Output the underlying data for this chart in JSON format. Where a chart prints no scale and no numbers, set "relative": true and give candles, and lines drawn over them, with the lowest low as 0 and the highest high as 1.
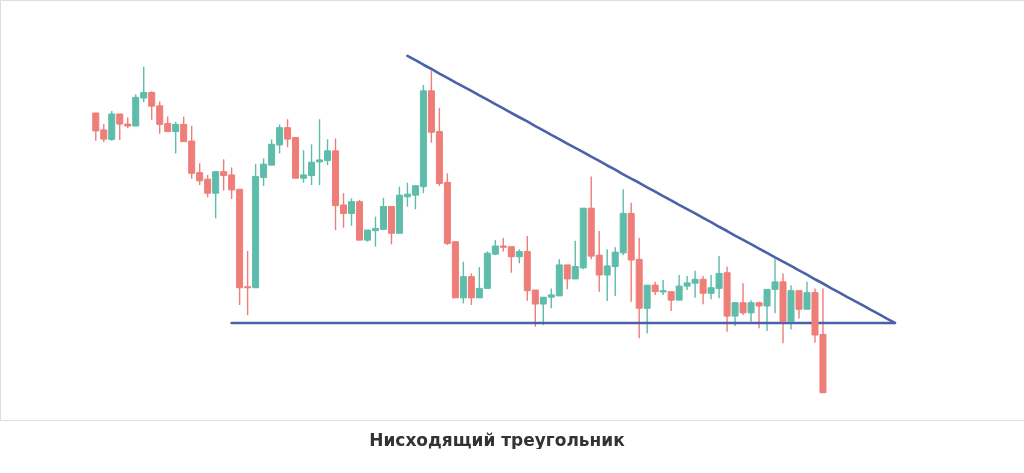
{
  "chart_data": {
    "type": "candlestick",
    "title": "Нисходящий треугольник",
    "relative": true,
    "categories": [
      null,
      null,
      null,
      null,
      null,
      null,
      null,
      null,
      null,
      null,
      null,
      null,
      null,
      null,
      null,
      null,
      null,
      null,
      null,
      null,
      null,
      null,
      null,
      null,
      null,
      null,
      null,
      null,
      null,
      null,
      null,
      null,
      null,
      null,
      null,
      null,
      null,
      null,
      null,
      null,
      null,
      null,
      null,
      null,
      null,
      null,
      null,
      null,
      null,
      null,
      null,
      null,
      null,
      null,
      null,
      null,
      null,
      null,
      null,
      null,
      null,
      null,
      null,
      null,
      null,
      null,
      null,
      null,
      null,
      null,
      null,
      null,
      null,
      null,
      null,
      null,
      null,
      null,
      null,
      null,
      null,
      null,
      null,
      null,
      null,
      null,
      null,
      null,
      null,
      null,
      null,
      null,
      null,
      null,
      null,
      null,
      null,
      null,
      null,
      null,
      null
    ],
    "ohlc": [
      [
        0.858,
        0.858,
        0.773,
        0.803
      ],
      [
        0.806,
        0.824,
        0.769,
        0.778
      ],
      [
        0.777,
        0.864,
        0.773,
        0.855
      ],
      [
        0.855,
        0.855,
        0.775,
        0.824
      ],
      [
        0.824,
        0.844,
        0.811,
        0.818
      ],
      [
        0.818,
        0.915,
        0.818,
        0.906
      ],
      [
        0.904,
        1.0,
        0.891,
        0.921
      ],
      [
        0.921,
        0.925,
        0.837,
        0.879
      ],
      [
        0.88,
        0.893,
        0.794,
        0.823
      ],
      [
        0.826,
        0.847,
        0.801,
        0.801
      ],
      [
        0.801,
        0.831,
        0.734,
        0.823
      ],
      [
        0.823,
        0.847,
        0.77,
        0.77
      ],
      [
        0.772,
        0.819,
        0.656,
        0.673
      ],
      [
        0.675,
        0.704,
        0.637,
        0.65
      ],
      [
        0.655,
        0.668,
        0.599,
        0.612
      ],
      [
        0.612,
        0.678,
        0.535,
        0.678
      ],
      [
        0.678,
        0.716,
        0.62,
        0.666
      ],
      [
        0.668,
        0.691,
        0.594,
        0.622
      ],
      [
        0.624,
        0.624,
        0.269,
        0.322
      ],
      [
        0.325,
        0.435,
        0.238,
        0.322
      ],
      [
        0.322,
        0.702,
        0.322,
        0.663
      ],
      [
        0.66,
        0.719,
        0.634,
        0.701
      ],
      [
        0.698,
        0.777,
        0.698,
        0.762
      ],
      [
        0.76,
        0.823,
        0.734,
        0.813
      ],
      [
        0.813,
        0.839,
        0.753,
        0.778
      ],
      [
        0.783,
        0.783,
        0.658,
        0.658
      ],
      [
        0.658,
        0.744,
        0.644,
        0.668
      ],
      [
        0.666,
        0.762,
        0.637,
        0.707
      ],
      [
        0.708,
        0.839,
        0.637,
        0.714
      ],
      [
        0.712,
        0.777,
        0.698,
        0.742
      ],
      [
        0.742,
        0.78,
        0.499,
        0.574
      ],
      [
        0.576,
        0.612,
        0.506,
        0.55
      ],
      [
        0.55,
        0.596,
        0.512,
        0.586
      ],
      [
        0.586,
        0.591,
        0.468,
        0.468
      ],
      [
        0.468,
        0.499,
        0.463,
        0.499
      ],
      [
        0.497,
        0.54,
        0.448,
        0.504
      ],
      [
        0.501,
        0.598,
        0.501,
        0.571
      ],
      [
        0.571,
        0.571,
        0.455,
        0.489
      ],
      [
        0.489,
        0.632,
        0.489,
        0.606
      ],
      [
        0.601,
        0.644,
        0.571,
        0.609
      ],
      [
        0.606,
        0.635,
        0.563,
        0.635
      ],
      [
        0.632,
        0.944,
        0.612,
        0.926
      ],
      [
        0.926,
        0.988,
        0.767,
        0.799
      ],
      [
        0.801,
        0.874,
        0.634,
        0.642
      ],
      [
        0.645,
        0.673,
        0.453,
        0.458
      ],
      [
        0.463,
        0.463,
        0.291,
        0.291
      ],
      [
        0.291,
        0.402,
        0.274,
        0.356
      ],
      [
        0.356,
        0.366,
        0.269,
        0.291
      ],
      [
        0.291,
        0.385,
        0.291,
        0.32
      ],
      [
        0.32,
        0.433,
        0.32,
        0.428
      ],
      [
        0.425,
        0.468,
        0.422,
        0.45
      ],
      [
        0.45,
        0.475,
        0.433,
        0.446
      ],
      [
        0.448,
        0.448,
        0.368,
        0.417
      ],
      [
        0.417,
        0.44,
        0.397,
        0.433
      ],
      [
        0.433,
        0.481,
        0.282,
        0.313
      ],
      [
        0.315,
        0.315,
        0.202,
        0.272
      ],
      [
        0.272,
        0.293,
        0.208,
        0.293
      ],
      [
        0.293,
        0.32,
        0.259,
        0.3
      ],
      [
        0.297,
        0.409,
        0.297,
        0.392
      ],
      [
        0.392,
        0.392,
        0.317,
        0.349
      ],
      [
        0.349,
        0.466,
        0.349,
        0.387
      ],
      [
        0.383,
        0.566,
        0.379,
        0.566
      ],
      [
        0.566,
        0.663,
        0.409,
        0.419
      ],
      [
        0.422,
        0.496,
        0.31,
        0.361
      ],
      [
        0.361,
        0.44,
        0.281,
        0.389
      ],
      [
        0.387,
        0.446,
        0.297,
        0.431
      ],
      [
        0.429,
        0.624,
        0.422,
        0.55
      ],
      [
        0.55,
        0.583,
        0.279,
        0.407
      ],
      [
        0.409,
        0.475,
        0.167,
        0.259
      ],
      [
        0.259,
        0.33,
        0.182,
        0.33
      ],
      [
        0.33,
        0.34,
        0.3,
        0.31
      ],
      [
        0.309,
        0.346,
        0.3,
        0.313
      ],
      [
        0.31,
        0.31,
        0.251,
        0.284
      ],
      [
        0.284,
        0.361,
        0.284,
        0.327
      ],
      [
        0.327,
        0.358,
        0.315,
        0.337
      ],
      [
        0.336,
        0.374,
        0.291,
        0.348
      ],
      [
        0.348,
        0.358,
        0.271,
        0.305
      ],
      [
        0.305,
        0.361,
        0.287,
        0.322
      ],
      [
        0.32,
        0.419,
        0.29,
        0.366
      ],
      [
        0.368,
        0.387,
        0.187,
        0.235
      ],
      [
        0.235,
        0.276,
        0.205,
        0.276
      ],
      [
        0.276,
        0.336,
        0.238,
        0.245
      ],
      [
        0.245,
        0.284,
        0.218,
        0.276
      ],
      [
        0.276,
        0.279,
        0.198,
        0.266
      ],
      [
        0.266,
        0.317,
        0.189,
        0.317
      ],
      [
        0.317,
        0.409,
        0.244,
        0.34
      ],
      [
        0.34,
        0.366,
        0.152,
        0.218
      ],
      [
        0.218,
        0.33,
        0.194,
        0.313
      ],
      [
        0.313,
        0.313,
        0.228,
        0.256
      ],
      [
        0.256,
        0.34,
        0.256,
        0.307
      ],
      [
        0.307,
        0.32,
        0.153,
        0.177
      ],
      [
        0.179,
        0.32,
        0.0,
        0.0
      ],
      null,
      null,
      null,
      null,
      null,
      null,
      null,
      null,
      null
    ],
    "colors": [
      "#ef7d78",
      "#ef7d78",
      "#5ebcaa",
      "#ef7d78",
      "#ef7d78",
      "#5ebcaa",
      "#5ebcaa",
      "#ef7d78",
      "#ef7d78",
      "#ef7d78",
      "#5ebcaa",
      "#ef7d78",
      "#ef7d78",
      "#ef7d78",
      "#ef7d78",
      "#5ebcaa",
      "#ef7d78",
      "#ef7d78",
      "#ef7d78",
      "#ef7d78",
      "#5ebcaa",
      "#5ebcaa",
      "#5ebcaa",
      "#5ebcaa",
      "#ef7d78",
      "#ef7d78",
      "#5ebcaa",
      "#5ebcaa",
      "#5ebcaa",
      "#5ebcaa",
      "#ef7d78",
      "#ef7d78",
      "#5ebcaa",
      "#ef7d78",
      "#5ebcaa",
      "#5ebcaa",
      "#5ebcaa",
      "#ef7d78",
      "#5ebcaa",
      "#5ebcaa",
      "#5ebcaa",
      "#5ebcaa",
      "#ef7d78",
      "#ef7d78",
      "#ef7d78",
      "#ef7d78",
      "#5ebcaa",
      "#ef7d78",
      "#5ebcaa",
      "#5ebcaa",
      "#5ebcaa",
      "#ef7d78",
      "#ef7d78",
      "#5ebcaa",
      "#ef7d78",
      "#ef7d78",
      "#5ebcaa",
      "#5ebcaa",
      "#5ebcaa",
      "#ef7d78",
      "#5ebcaa",
      "#5ebcaa",
      "#ef7d78",
      "#ef7d78",
      "#5ebcaa",
      "#5ebcaa",
      "#5ebcaa",
      "#ef7d78",
      "#ef7d78",
      "#5ebcaa",
      "#ef7d78",
      "#5ebcaa",
      "#ef7d78",
      "#5ebcaa",
      "#5ebcaa",
      "#5ebcaa",
      "#ef7d78",
      "#5ebcaa",
      "#5ebcaa",
      "#ef7d78",
      "#5ebcaa",
      "#ef7d78",
      "#5ebcaa",
      "#ef7d78",
      "#5ebcaa",
      "#5ebcaa",
      "#ef7d78",
      "#5ebcaa",
      "#ef7d78",
      "#5ebcaa",
      "#ef7d78",
      "#ef7d78",
      null,
      null,
      null,
      null,
      null,
      null,
      null,
      null,
      null
    ],
    "series": [
      {
        "type": "line",
        "color": "#4a62a9",
        "values": [
          null,
          null,
          null,
          null,
          null,
          null,
          null,
          null,
          null,
          null,
          null,
          null,
          null,
          null,
          null,
          null,
          null,
          0.214,
          0.214,
          0.214,
          0.214,
          0.214,
          0.214,
          0.214,
          0.214,
          0.214,
          0.214,
          0.214,
          0.214,
          0.214,
          0.214,
          0.214,
          0.214,
          0.214,
          0.214,
          0.214,
          0.214,
          0.214,
          0.214,
          0.214,
          0.214,
          0.214,
          0.214,
          0.214,
          0.214,
          0.214,
          0.214,
          0.214,
          0.214,
          0.214,
          0.214,
          0.214,
          0.214,
          0.214,
          0.214,
          0.214,
          0.214,
          0.214,
          0.214,
          0.214,
          0.214,
          0.214,
          0.214,
          0.214,
          0.214,
          0.214,
          0.214,
          0.214,
          0.214,
          0.214,
          0.214,
          0.214,
          0.214,
          0.214,
          0.214,
          0.214,
          0.214,
          0.214,
          0.214,
          0.214,
          0.214,
          0.214,
          0.214,
          0.214,
          0.214,
          0.214,
          0.214,
          0.214,
          0.214,
          0.214,
          0.214,
          0.214,
          0.214,
          0.214,
          0.214,
          0.214,
          0.214,
          0.214,
          0.214,
          0.214,
          0.214
        ]
      },
      {
        "type": "line",
        "color": "#4a62a9",
        "values": [
          null,
          null,
          null,
          null,
          null,
          null,
          null,
          null,
          null,
          null,
          null,
          null,
          null,
          null,
          null,
          null,
          null,
          null,
          null,
          null,
          null,
          null,
          null,
          null,
          null,
          null,
          null,
          null,
          null,
          null,
          null,
          null,
          null,
          null,
          null,
          null,
          null,
          null,
          null,
          1.033,
          1.02,
          1.006,
          0.993,
          0.979,
          0.966,
          0.952,
          0.939,
          0.926,
          0.912,
          0.899,
          0.885,
          0.872,
          0.858,
          0.845,
          0.832,
          0.818,
          0.805,
          0.791,
          0.778,
          0.764,
          0.751,
          0.738,
          0.724,
          0.711,
          0.697,
          0.684,
          0.67,
          0.657,
          0.644,
          0.63,
          0.617,
          0.603,
          0.59,
          0.576,
          0.563,
          0.55,
          0.536,
          0.523,
          0.509,
          0.496,
          0.482,
          0.469,
          0.456,
          0.442,
          0.429,
          0.415,
          0.402,
          0.389,
          0.375,
          0.362,
          0.348,
          0.335,
          0.321,
          0.308,
          0.294,
          0.281,
          0.268,
          0.254,
          0.241,
          0.227,
          0.214
        ]
      }
    ]
  }
}
